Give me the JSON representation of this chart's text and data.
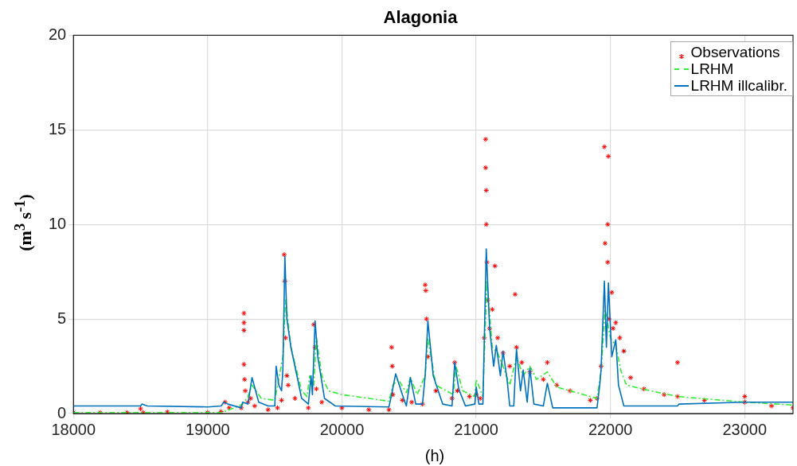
{
  "chart_data": {
    "type": "line",
    "title": "Alagonia",
    "xlabel": "(h)",
    "ylabel": "(m$^{3}$ s$^{-1}$)",
    "xlim": [
      18000,
      23360
    ],
    "xticks": [
      18000,
      19000,
      20000,
      21000,
      22000,
      23000
    ],
    "ylim": [
      0,
      20
    ],
    "yticks": [
      0,
      5,
      10,
      15,
      20
    ],
    "grid": true,
    "legend": "top right",
    "series": [
      {
        "name": "Observations",
        "type": "scatter",
        "marker": "cross",
        "color": "#ff0000",
        "x": [
          18000,
          18200,
          18400,
          18500,
          18520,
          18700,
          19000,
          19100,
          19130,
          19160,
          19250,
          19270,
          19270,
          19270,
          19270,
          19275,
          19280,
          19300,
          19320,
          19350,
          19450,
          19520,
          19550,
          19570,
          19575,
          19580,
          19590,
          19600,
          19650,
          19750,
          19790,
          19800,
          19810,
          19850,
          20000,
          20200,
          20350,
          20370,
          20375,
          20380,
          20450,
          20520,
          20600,
          20620,
          20625,
          20630,
          20640,
          20700,
          20820,
          20840,
          20860,
          20950,
          21000,
          21030,
          21060,
          21070,
          21070,
          21075,
          21075,
          21080,
          21085,
          21100,
          21120,
          21140,
          21160,
          21200,
          21250,
          21290,
          21300,
          21340,
          21400,
          21500,
          21530,
          21600,
          21700,
          21850,
          21900,
          21930,
          21955,
          21960,
          21985,
          21980,
          21980,
          21990,
          22010,
          22020,
          22040,
          22070,
          22100,
          22150,
          22250,
          22400,
          22500,
          22500,
          22700,
          23000,
          23000,
          23200,
          23360
        ],
        "values": [
          0.05,
          0.05,
          0.05,
          0.25,
          0.05,
          0.08,
          0.05,
          0.1,
          0.6,
          0.3,
          0.3,
          5.3,
          4.8,
          4.4,
          2.6,
          1.8,
          1.2,
          0.6,
          0.8,
          0.4,
          0.2,
          0.3,
          0.7,
          8.4,
          7,
          4,
          2,
          1.5,
          0.8,
          0.3,
          4.7,
          3.5,
          1.3,
          0.6,
          0.3,
          0.2,
          0.2,
          3.5,
          2.5,
          1,
          0.7,
          0.6,
          0.5,
          6.8,
          6.5,
          5,
          3,
          1.2,
          0.8,
          2.7,
          1.2,
          0.9,
          1,
          0.8,
          4,
          14.5,
          13,
          11.8,
          10,
          8,
          6,
          4.5,
          5.5,
          7.8,
          4,
          3.2,
          2.5,
          6.3,
          3.5,
          2.7,
          2.2,
          1.8,
          2.7,
          1.5,
          1.2,
          0.7,
          0.8,
          2.5,
          14.1,
          9,
          13.6,
          10,
          8,
          5,
          6.4,
          4.5,
          4.8,
          4,
          3.3,
          1.9,
          1.3,
          1,
          2.7,
          0.9,
          0.7,
          0.9,
          0.6,
          0.4,
          0.3
        ]
      },
      {
        "name": "LRHM",
        "line_style": "dashed",
        "color": "#33ee33",
        "x": [
          18000,
          19100,
          19200,
          19260,
          19300,
          19330,
          19400,
          19500,
          19560,
          19580,
          19620,
          19700,
          19740,
          19760,
          19790,
          19810,
          19850,
          19900,
          20000,
          20350,
          20380,
          20420,
          20480,
          20510,
          20560,
          20620,
          20640,
          20700,
          20830,
          20850,
          20900,
          20990,
          21000,
          21050,
          21080,
          21120,
          21160,
          21200,
          21250,
          21300,
          21350,
          21400,
          21450,
          21530,
          21600,
          21900,
          21930,
          21960,
          22000,
          22040,
          22080,
          22120,
          22300,
          22500,
          23000,
          23360
        ],
        "values": [
          0.05,
          0.05,
          0.3,
          0.5,
          0.9,
          1.5,
          0.8,
          0.7,
          3,
          6,
          3.5,
          1.2,
          0.9,
          2,
          1.5,
          4,
          2,
          1.2,
          1,
          0.65,
          1.5,
          1.8,
          1.1,
          1.9,
          1,
          2,
          4,
          1.5,
          1,
          2.5,
          1.2,
          0.9,
          1.8,
          0.9,
          7,
          3.5,
          3.2,
          2.5,
          1.5,
          3,
          2,
          2.5,
          1.8,
          2.2,
          1.4,
          0.8,
          2.2,
          5.5,
          4,
          3.6,
          2.2,
          1.5,
          1.2,
          0.9,
          0.6,
          0.45
        ]
      },
      {
        "name": "LRHM illcalibr.",
        "line_style": "solid",
        "color": "#0072bd",
        "x": [
          18000,
          18500,
          18510,
          18550,
          19000,
          19100,
          19120,
          19150,
          19250,
          19260,
          19300,
          19330,
          19380,
          19450,
          19500,
          19510,
          19530,
          19550,
          19560,
          19575,
          19590,
          19620,
          19700,
          19750,
          19770,
          19780,
          19800,
          19820,
          19870,
          19950,
          20350,
          20370,
          20400,
          20450,
          20480,
          20510,
          20550,
          20600,
          20620,
          20640,
          20680,
          20750,
          20820,
          20840,
          20870,
          20920,
          20990,
          21000,
          21020,
          21050,
          21075,
          21100,
          21130,
          21150,
          21180,
          21200,
          21230,
          21250,
          21280,
          21300,
          21330,
          21350,
          21380,
          21400,
          21430,
          21500,
          21530,
          21570,
          21900,
          21920,
          21930,
          21955,
          21970,
          21985,
          22010,
          22040,
          22060,
          22100,
          22500,
          22510,
          23000,
          23360
        ],
        "values": [
          0.4,
          0.4,
          0.5,
          0.4,
          0.35,
          0.4,
          0.6,
          0.5,
          0.3,
          0.6,
          0.5,
          1.9,
          0.6,
          0.4,
          0.4,
          2.5,
          1.5,
          1.2,
          2.3,
          8.3,
          5,
          3.5,
          0.8,
          0.5,
          2,
          1,
          4.9,
          3,
          0.8,
          0.4,
          0.35,
          1,
          2.1,
          1,
          0.4,
          1.9,
          0.5,
          0.5,
          2,
          4.9,
          2,
          0.5,
          0.4,
          2.7,
          1.3,
          0.4,
          0.5,
          1.4,
          0.5,
          0.5,
          8.7,
          4.5,
          2.5,
          3.6,
          2,
          3.3,
          1.8,
          0.4,
          0.4,
          3.4,
          1.2,
          2.3,
          0.6,
          2.4,
          0.5,
          0.4,
          1.6,
          0.3,
          0.3,
          1.5,
          2.3,
          7,
          3.5,
          6.9,
          3,
          3.9,
          1.5,
          0.4,
          0.4,
          0.5,
          0.6,
          0.6
        ]
      }
    ]
  }
}
